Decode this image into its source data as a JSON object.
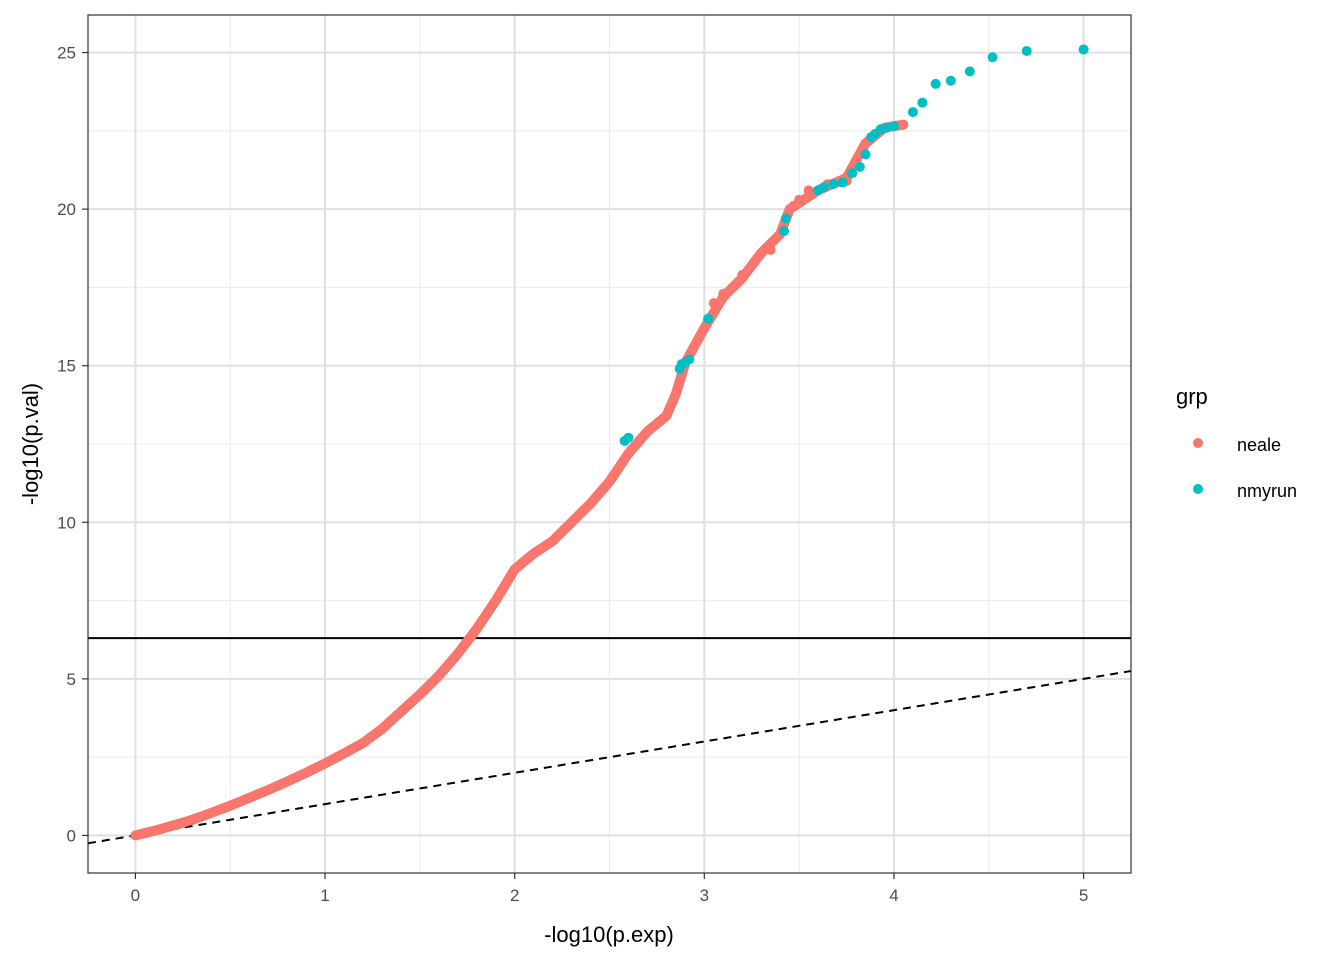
{
  "chart_data": {
    "type": "scatter",
    "title": "",
    "xlabel": "-log10(p.exp)",
    "ylabel": "-log10(p.val)",
    "xlim": [
      -0.25,
      5.25
    ],
    "ylim": [
      -1.2,
      26.2
    ],
    "x_ticks": [
      0,
      1,
      2,
      3,
      4,
      5
    ],
    "y_ticks": [
      0,
      5,
      10,
      15,
      20,
      25
    ],
    "x_tick_labels": [
      "0",
      "1",
      "2",
      "3",
      "4",
      "5"
    ],
    "y_tick_labels": [
      "0",
      "5",
      "10",
      "15",
      "20",
      "25"
    ],
    "grid": true,
    "reference_lines": {
      "horizontal_solid_y": 6.3,
      "diagonal_dashed": {
        "slope": 1,
        "intercept": 0
      }
    },
    "legend": {
      "title": "grp",
      "position": "right",
      "entries": [
        {
          "label": "neale",
          "color": "#F8766D"
        },
        {
          "label": "nmyrun",
          "color": "#00BFC4"
        }
      ]
    },
    "curve_trace": [
      [
        0.0,
        0.0
      ],
      [
        0.1,
        0.15
      ],
      [
        0.2,
        0.32
      ],
      [
        0.3,
        0.5
      ],
      [
        0.4,
        0.72
      ],
      [
        0.5,
        0.95
      ],
      [
        0.6,
        1.2
      ],
      [
        0.7,
        1.45
      ],
      [
        0.8,
        1.72
      ],
      [
        0.9,
        2.0
      ],
      [
        1.0,
        2.3
      ],
      [
        1.1,
        2.62
      ],
      [
        1.2,
        2.95
      ],
      [
        1.3,
        3.4
      ],
      [
        1.4,
        3.95
      ],
      [
        1.5,
        4.5
      ],
      [
        1.6,
        5.1
      ],
      [
        1.7,
        5.8
      ],
      [
        1.8,
        6.6
      ],
      [
        1.9,
        7.5
      ],
      [
        2.0,
        8.5
      ],
      [
        2.1,
        9.0
      ],
      [
        2.2,
        9.4
      ],
      [
        2.3,
        10.0
      ],
      [
        2.4,
        10.6
      ],
      [
        2.5,
        11.3
      ],
      [
        2.6,
        12.2
      ],
      [
        2.7,
        12.9
      ],
      [
        2.8,
        13.4
      ],
      [
        2.85,
        14.1
      ],
      [
        2.9,
        15.1
      ],
      [
        3.0,
        16.2
      ],
      [
        3.1,
        17.2
      ],
      [
        3.2,
        17.8
      ],
      [
        3.3,
        18.6
      ],
      [
        3.4,
        19.2
      ],
      [
        3.45,
        20.0
      ],
      [
        3.6,
        20.6
      ],
      [
        3.75,
        21.0
      ],
      [
        3.85,
        22.1
      ],
      [
        3.95,
        22.6
      ],
      [
        4.05,
        22.7
      ]
    ],
    "series": [
      {
        "name": "neale",
        "color": "#F8766D",
        "points": [
          [
            4.05,
            22.7
          ],
          [
            3.75,
            20.9
          ],
          [
            3.7,
            20.85
          ],
          [
            3.65,
            20.8
          ],
          [
            3.55,
            20.6
          ],
          [
            3.5,
            20.3
          ],
          [
            3.47,
            20.1
          ],
          [
            3.35,
            18.7
          ],
          [
            3.3,
            18.6
          ],
          [
            3.25,
            18.2
          ],
          [
            3.2,
            17.9
          ],
          [
            3.15,
            17.5
          ],
          [
            3.1,
            17.3
          ],
          [
            3.05,
            17.0
          ]
        ]
      },
      {
        "name": "nmyrun",
        "color": "#00BFC4",
        "points": [
          [
            5.0,
            25.1
          ],
          [
            4.7,
            25.05
          ],
          [
            4.52,
            24.85
          ],
          [
            4.4,
            24.4
          ],
          [
            4.3,
            24.1
          ],
          [
            4.22,
            24.0
          ],
          [
            4.15,
            23.4
          ],
          [
            4.1,
            23.1
          ],
          [
            4.0,
            22.65
          ],
          [
            3.96,
            22.6
          ],
          [
            3.93,
            22.55
          ],
          [
            3.9,
            22.4
          ],
          [
            3.88,
            22.3
          ],
          [
            3.85,
            21.75
          ],
          [
            3.82,
            21.35
          ],
          [
            3.78,
            21.15
          ],
          [
            3.73,
            20.85
          ],
          [
            3.68,
            20.8
          ],
          [
            3.63,
            20.7
          ],
          [
            3.6,
            20.6
          ],
          [
            3.43,
            19.7
          ],
          [
            3.42,
            19.3
          ],
          [
            3.02,
            16.5
          ],
          [
            2.92,
            15.2
          ],
          [
            2.9,
            15.1
          ],
          [
            2.88,
            15.05
          ],
          [
            2.87,
            14.9
          ],
          [
            2.6,
            12.7
          ],
          [
            2.58,
            12.6
          ]
        ]
      }
    ]
  }
}
